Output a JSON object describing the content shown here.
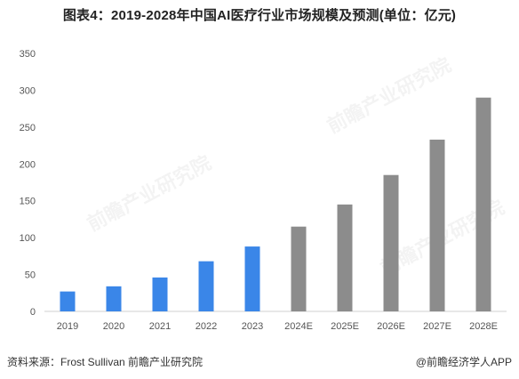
{
  "title": "图表4：2019-2028年中国AI医疗行业市场规模及预测(单位：亿元)",
  "source": "资料来源：Frost Sullivan 前瞻产业研究院",
  "credit": "@前瞻经济学人APP",
  "watermark": "前瞻产业研究院",
  "colors": {
    "actual": "#3a86e8",
    "forecast": "#8c8c8c"
  },
  "chart_data": {
    "type": "bar",
    "title": "图表4：2019-2028年中国AI医疗行业市场规模及预测(单位：亿元)",
    "categories": [
      "2019",
      "2020",
      "2021",
      "2022",
      "2023",
      "2024E",
      "2025E",
      "2026E",
      "2027E",
      "2028E"
    ],
    "values": [
      27,
      34,
      46,
      68,
      88,
      115,
      145,
      185,
      233,
      290
    ],
    "forecast_from_index": 5,
    "xlabel": "",
    "ylabel": "",
    "ylim": [
      0,
      350
    ],
    "yticks": [
      0,
      50,
      100,
      150,
      200,
      250,
      300,
      350
    ],
    "grid": false,
    "legend": "none"
  }
}
